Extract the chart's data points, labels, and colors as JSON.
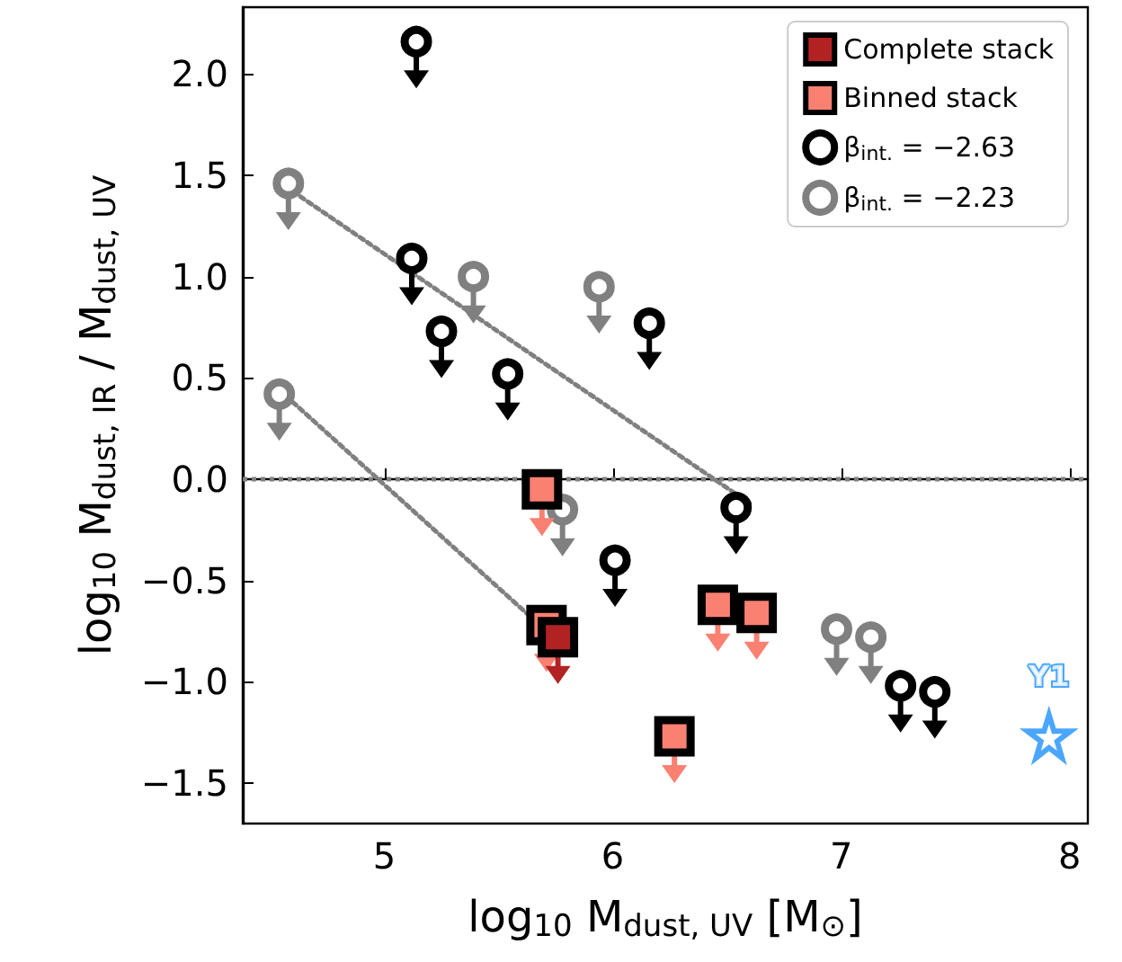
{
  "chart_data": {
    "type": "scatter",
    "xlabel": "log$_{10}$ M$_{dust, UV}$ [M$_{⊙}$]",
    "ylabel": "log$_{10}$ M$_{dust, IR}$ / M$_{dust, UV}$",
    "xlim": [
      4.38,
      8.08
    ],
    "xticks": [
      5,
      6,
      7,
      8
    ],
    "ylim": [
      -1.7,
      2.33
    ],
    "yticks": [
      {
        "value": -1.5,
        "label": "−1.5"
      },
      {
        "value": -1,
        "label": "−1.0"
      },
      {
        "value": -0.5,
        "label": "−0.5"
      },
      {
        "value": 0,
        "label": "0.0"
      },
      {
        "value": 0.5,
        "label": "0.5"
      },
      {
        "value": 1,
        "label": "1.0"
      },
      {
        "value": 1.5,
        "label": "1.5"
      },
      {
        "value": 2,
        "label": "2.0"
      }
    ],
    "grid": false,
    "legend": "top right",
    "ref_lines": [
      {
        "axis": "y",
        "value": 0,
        "color": "#808080",
        "line_style": "dotted"
      }
    ],
    "series": [
      {
        "name": "Complete stack",
        "marker": "square",
        "color": "#b22222",
        "x": [
          5.76
        ],
        "values": [
          -0.78
        ]
      },
      {
        "name": "Binned stack",
        "marker": "square",
        "color": "#fa8072",
        "x": [
          5.69,
          5.71,
          6.46,
          6.63,
          6.27
        ],
        "values": [
          -0.05,
          -0.72,
          -0.62,
          -0.66,
          -1.27
        ]
      },
      {
        "name": "β$_{int.}$ = −2.63",
        "marker": "circle",
        "color": "#000000",
        "x": [
          5.14,
          5.12,
          5.25,
          5.54,
          6.16,
          6.01,
          6.54,
          7.26,
          7.41
        ],
        "values": [
          2.16,
          1.09,
          0.73,
          0.52,
          0.77,
          -0.4,
          -0.14,
          -1.02,
          -1.05
        ]
      },
      {
        "name": "β$_{int.}$ = −2.23",
        "marker": "circle",
        "color": "#808080",
        "x": [
          4.58,
          4.54,
          5.39,
          5.94,
          5.78,
          6.98,
          7.13
        ],
        "values": [
          1.46,
          0.42,
          1.0,
          0.95,
          -0.15,
          -0.74,
          -0.78
        ]
      },
      {
        "type": "line",
        "marker": "none",
        "line_style": "dotted",
        "color": "#808080",
        "x": [
          4.6,
          6.6
        ],
        "values": [
          1.42,
          -0.12
        ]
      },
      {
        "type": "line",
        "marker": "none",
        "line_style": "dotted",
        "color": "#808080",
        "x": [
          4.57,
          5.68
        ],
        "values": [
          0.41,
          -0.72
        ]
      },
      {
        "name": "Y1",
        "marker": "star",
        "color": "#1e90ff",
        "x": [
          7.91
        ],
        "values": [
          -1.27
        ]
      }
    ]
  }
}
